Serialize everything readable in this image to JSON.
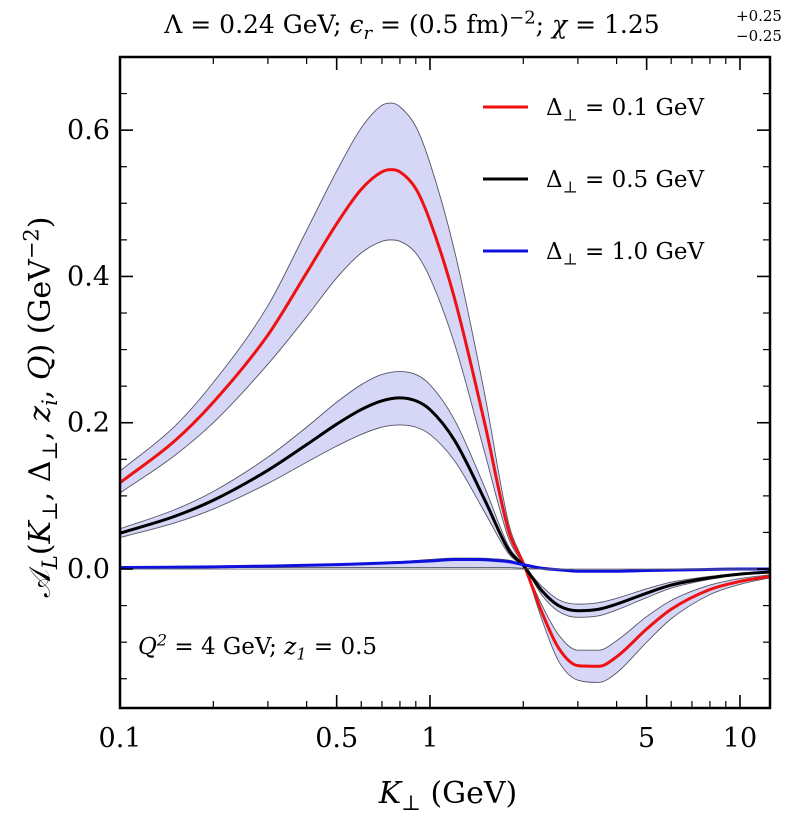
{
  "title": {
    "parts": [
      {
        "text": "Λ = 0.24 GeV;  ",
        "style": "normal"
      },
      {
        "text": "ϵ",
        "style": "italic"
      },
      {
        "text": "r",
        "style": "sub-italic"
      },
      {
        "text": " = (0.5 fm)",
        "style": "normal"
      },
      {
        "text": "−2",
        "style": "sup"
      },
      {
        "text": ";  ",
        "style": "normal"
      },
      {
        "text": "χ",
        "style": "italic"
      },
      {
        "text": " = 1.25",
        "style": "normal"
      }
    ],
    "err_up": "+0.25",
    "err_down": "−0.25"
  },
  "annotation": {
    "parts": [
      {
        "text": "Q",
        "style": "italic"
      },
      {
        "text": "2",
        "style": "sup"
      },
      {
        "text": " = 4 GeV; ",
        "style": "normal"
      },
      {
        "text": "z",
        "style": "italic"
      },
      {
        "text": "1",
        "style": "sub"
      },
      {
        "text": " = 0.5",
        "style": "normal"
      }
    ]
  },
  "chart_data": {
    "type": "line",
    "xlabel": "K⊥ (GeV)",
    "ylabel": "𝒜L(K⊥, Δ⊥, zi, Q) (GeV−2)",
    "xlabel_parts": [
      {
        "text": "K",
        "style": "italic"
      },
      {
        "text": "⊥",
        "style": "sub"
      },
      {
        "text": " (GeV)",
        "style": "normal"
      }
    ],
    "ylabel_parts": [
      {
        "text": "𝒜",
        "style": "normal"
      },
      {
        "text": "L",
        "style": "sub-italic"
      },
      {
        "text": "(",
        "style": "normal"
      },
      {
        "text": "K",
        "style": "italic"
      },
      {
        "text": "⊥",
        "style": "sub"
      },
      {
        "text": ", Δ",
        "style": "normal"
      },
      {
        "text": "⊥",
        "style": "sub"
      },
      {
        "text": ", ",
        "style": "normal"
      },
      {
        "text": "z",
        "style": "italic"
      },
      {
        "text": "i",
        "style": "sub-italic"
      },
      {
        "text": ", ",
        "style": "normal"
      },
      {
        "text": "Q",
        "style": "italic"
      },
      {
        "text": ") (GeV",
        "style": "normal"
      },
      {
        "text": "−2",
        "style": "sup"
      },
      {
        "text": ")",
        "style": "normal"
      }
    ],
    "x_scale": "log",
    "xlim": [
      0.1,
      12.5
    ],
    "ylim": [
      -0.19,
      0.7
    ],
    "xticks": [
      {
        "value": 0.1,
        "label": "0.1"
      },
      {
        "value": 0.5,
        "label": "0.5"
      },
      {
        "value": 1,
        "label": "1"
      },
      {
        "value": 5,
        "label": "5"
      },
      {
        "value": 10,
        "label": "10"
      }
    ],
    "yticks": [
      {
        "value": 0.0,
        "label": "0.0"
      },
      {
        "value": 0.2,
        "label": "0.2"
      },
      {
        "value": 0.4,
        "label": "0.4"
      },
      {
        "value": 0.6,
        "label": "0.6"
      }
    ],
    "grid": false,
    "legend_position": "top-right",
    "band_color": "#d6d6f6",
    "band_edge_color": "#555566",
    "series": [
      {
        "name": "Δ⊥ = 0.1 GeV",
        "legend_parts": [
          {
            "text": "Δ",
            "style": "normal"
          },
          {
            "text": "⊥",
            "style": "sub"
          },
          {
            "text": " = 0.1 GeV",
            "style": "normal"
          }
        ],
        "color": "#ee1111",
        "x": [
          0.1,
          0.15,
          0.2,
          0.3,
          0.4,
          0.5,
          0.6,
          0.7,
          0.75,
          0.8,
          0.9,
          1.0,
          1.2,
          1.5,
          1.8,
          2.0,
          2.3,
          2.6,
          3.0,
          3.5,
          4.0,
          5.0,
          6.0,
          8.0,
          10.0,
          12.5
        ],
        "y": [
          0.118,
          0.175,
          0.228,
          0.32,
          0.405,
          0.472,
          0.519,
          0.543,
          0.546,
          0.543,
          0.52,
          0.476,
          0.37,
          0.2,
          0.05,
          0.008,
          -0.06,
          -0.108,
          -0.132,
          -0.133,
          -0.12,
          -0.082,
          -0.055,
          -0.028,
          -0.017,
          -0.01
        ],
        "band_upper": [
          0.134,
          0.195,
          0.255,
          0.36,
          0.463,
          0.544,
          0.603,
          0.634,
          0.637,
          0.632,
          0.605,
          0.555,
          0.435,
          0.24,
          0.06,
          0.01,
          -0.07,
          -0.126,
          -0.152,
          -0.155,
          -0.142,
          -0.1,
          -0.068,
          -0.035,
          -0.021,
          -0.012
        ],
        "band_lower": [
          0.104,
          0.155,
          0.2,
          0.28,
          0.345,
          0.398,
          0.432,
          0.448,
          0.45,
          0.448,
          0.432,
          0.398,
          0.308,
          0.16,
          0.04,
          0.006,
          -0.05,
          -0.09,
          -0.111,
          -0.111,
          -0.098,
          -0.065,
          -0.043,
          -0.022,
          -0.013,
          -0.008
        ]
      },
      {
        "name": "Δ⊥ = 0.5 GeV",
        "legend_parts": [
          {
            "text": "Δ",
            "style": "normal"
          },
          {
            "text": "⊥",
            "style": "sub"
          },
          {
            "text": " = 0.5 GeV",
            "style": "normal"
          }
        ],
        "color": "#000000",
        "x": [
          0.1,
          0.15,
          0.2,
          0.3,
          0.4,
          0.5,
          0.6,
          0.7,
          0.8,
          0.9,
          1.0,
          1.2,
          1.5,
          1.8,
          2.0,
          2.3,
          2.6,
          3.0,
          3.5,
          4.0,
          5.0,
          6.0,
          8.0,
          10.0,
          12.5
        ],
        "y": [
          0.049,
          0.072,
          0.094,
          0.135,
          0.17,
          0.198,
          0.218,
          0.23,
          0.234,
          0.23,
          0.218,
          0.176,
          0.095,
          0.025,
          0.005,
          -0.03,
          -0.05,
          -0.057,
          -0.055,
          -0.048,
          -0.033,
          -0.022,
          -0.012,
          -0.007,
          -0.004
        ],
        "band_upper": [
          0.055,
          0.081,
          0.106,
          0.153,
          0.194,
          0.228,
          0.252,
          0.266,
          0.27,
          0.266,
          0.252,
          0.204,
          0.112,
          0.03,
          0.006,
          -0.036,
          -0.058,
          -0.066,
          -0.064,
          -0.056,
          -0.039,
          -0.026,
          -0.014,
          -0.008,
          -0.005
        ],
        "band_lower": [
          0.043,
          0.063,
          0.082,
          0.117,
          0.146,
          0.168,
          0.184,
          0.194,
          0.197,
          0.194,
          0.184,
          0.148,
          0.078,
          0.02,
          0.004,
          -0.024,
          -0.042,
          -0.048,
          -0.046,
          -0.04,
          -0.027,
          -0.018,
          -0.01,
          -0.006,
          -0.003
        ]
      },
      {
        "name": "Δ⊥ = 1.0 GeV",
        "legend_parts": [
          {
            "text": "Δ",
            "style": "normal"
          },
          {
            "text": "⊥",
            "style": "sub"
          },
          {
            "text": " = 1.0 GeV",
            "style": "normal"
          }
        ],
        "color": "#1111dd",
        "x": [
          0.1,
          0.2,
          0.3,
          0.5,
          0.7,
          0.8,
          1.0,
          1.2,
          1.4,
          1.6,
          1.8,
          2.0,
          2.3,
          2.6,
          3.0,
          4.0,
          5.0,
          7.0,
          10.0,
          12.5
        ],
        "y": [
          0.002,
          0.003,
          0.004,
          0.006,
          0.008,
          0.009,
          0.011,
          0.013,
          0.013,
          0.012,
          0.01,
          0.006,
          0.001,
          -0.001,
          -0.003,
          -0.003,
          -0.002,
          -0.001,
          0.0,
          0.0
        ],
        "band_upper": [
          0.003,
          0.004,
          0.005,
          0.007,
          0.009,
          0.01,
          0.013,
          0.015,
          0.015,
          0.014,
          0.012,
          0.007,
          0.002,
          0.0,
          -0.002,
          -0.002,
          -0.001,
          0.0,
          0.0,
          0.0
        ],
        "band_lower": [
          0.001,
          0.002,
          0.002,
          0.002,
          0.002,
          0.002,
          0.002,
          0.002,
          0.002,
          0.002,
          0.002,
          0.001,
          0.0,
          -0.002,
          -0.004,
          -0.004,
          -0.003,
          -0.002,
          -0.001,
          0.0
        ]
      }
    ]
  }
}
